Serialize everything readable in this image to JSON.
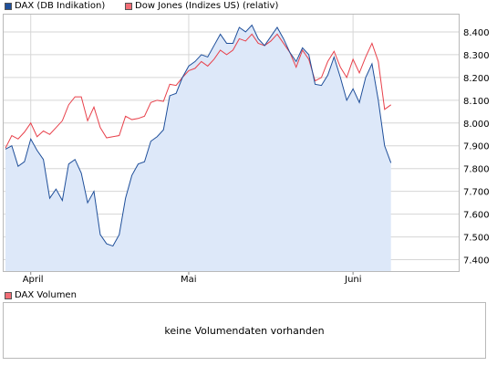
{
  "legend": {
    "dax_label": "DAX (DB Indikation)",
    "dow_label": "Dow Jones (Indizes US) (relativ)",
    "volume_label": "DAX Volumen"
  },
  "volume": {
    "message": "keine Volumendaten vorhanden"
  },
  "colors": {
    "dax_line": "#1f4f9a",
    "dax_fill": "#dde8f9",
    "dow_line": "#e8414b",
    "grid": "#d6d6d6",
    "frame": "#b9b9b9",
    "dax_box": "#1f4f9a",
    "dow_box": "#f26d76",
    "vol_box": "#f26d76"
  },
  "chart_data": {
    "type": "line",
    "ylim": [
      7350,
      8480
    ],
    "yticks": [
      7400,
      7500,
      7600,
      7700,
      7800,
      7900,
      8000,
      8100,
      8200,
      8300,
      8400
    ],
    "ytick_labels": [
      "7.400",
      "7.500",
      "7.600",
      "7.700",
      "7.800",
      "7.900",
      "8.000",
      "8.100",
      "8.200",
      "8.300",
      "8.400"
    ],
    "x_count": 72,
    "xticks": [
      {
        "index": 4,
        "label": "April"
      },
      {
        "index": 29,
        "label": "Mai"
      },
      {
        "index": 55,
        "label": "Juni"
      }
    ],
    "grid": true,
    "series": [
      {
        "name": "DAX (DB Indikation)",
        "values": [
          7885,
          7900,
          7810,
          7830,
          7930,
          7880,
          7840,
          7670,
          7710,
          7660,
          7820,
          7840,
          7780,
          7650,
          7700,
          7510,
          7470,
          7460,
          7510,
          7670,
          7770,
          7820,
          7830,
          7920,
          7940,
          7970,
          8120,
          8130,
          8200,
          8250,
          8270,
          8300,
          8290,
          8340,
          8390,
          8350,
          8350,
          8420,
          8400,
          8430,
          8370,
          8340,
          8380,
          8420,
          8370,
          8310,
          8270,
          8330,
          8300,
          8170,
          8165,
          8210,
          8290,
          8200,
          8100,
          8150,
          8090,
          8200,
          8260,
          8100,
          7900,
          7825
        ]
      },
      {
        "name": "Dow Jones (Indizes US) (relativ)",
        "values": [
          7890,
          7945,
          7930,
          7960,
          8000,
          7940,
          7965,
          7950,
          7980,
          8010,
          8080,
          8115,
          8115,
          8010,
          8070,
          7980,
          7935,
          7940,
          7945,
          8030,
          8015,
          8020,
          8030,
          8090,
          8100,
          8095,
          8170,
          8165,
          8200,
          8230,
          8240,
          8270,
          8250,
          8280,
          8320,
          8300,
          8320,
          8370,
          8360,
          8390,
          8350,
          8340,
          8360,
          8390,
          8350,
          8310,
          8245,
          8320,
          8280,
          8185,
          8200,
          8270,
          8315,
          8245,
          8200,
          8280,
          8220,
          8290,
          8350,
          8270,
          8060,
          8080
        ]
      }
    ]
  }
}
